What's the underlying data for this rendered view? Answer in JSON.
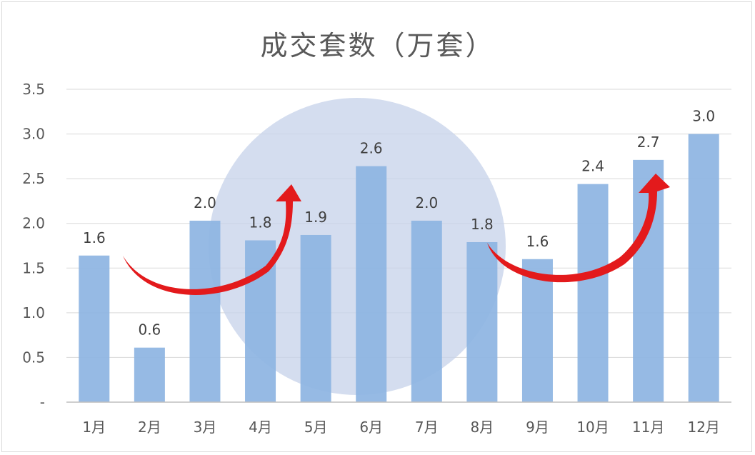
{
  "chart_data": {
    "type": "bar",
    "title": "成交套数（万套）",
    "xlabel": "",
    "ylabel": "",
    "categories": [
      "1月",
      "2月",
      "3月",
      "4月",
      "5月",
      "6月",
      "7月",
      "8月",
      "9月",
      "10月",
      "11月",
      "12月"
    ],
    "series": [
      {
        "values": [
          1.64,
          0.61,
          2.03,
          1.81,
          1.87,
          2.64,
          2.03,
          1.79,
          1.6,
          2.44,
          2.71,
          3.0
        ],
        "data_labels": [
          "1.6",
          "0.6",
          "2.0",
          "1.8",
          "1.9",
          "2.6",
          "2.0",
          "1.8",
          "1.6",
          "2.4",
          "2.7",
          "3.0"
        ]
      }
    ],
    "yticks": [
      "-",
      "0.5",
      "1.0",
      "1.5",
      "2.0",
      "2.5",
      "3.0",
      "3.5"
    ],
    "ylim": [
      0,
      3.5
    ],
    "grid": true,
    "legend": "none",
    "colors": {
      "bar": "#8db4e2",
      "arrow": "#e31a1c",
      "watermark": "#c5d2ea",
      "grid": "#d9d9d9"
    }
  }
}
